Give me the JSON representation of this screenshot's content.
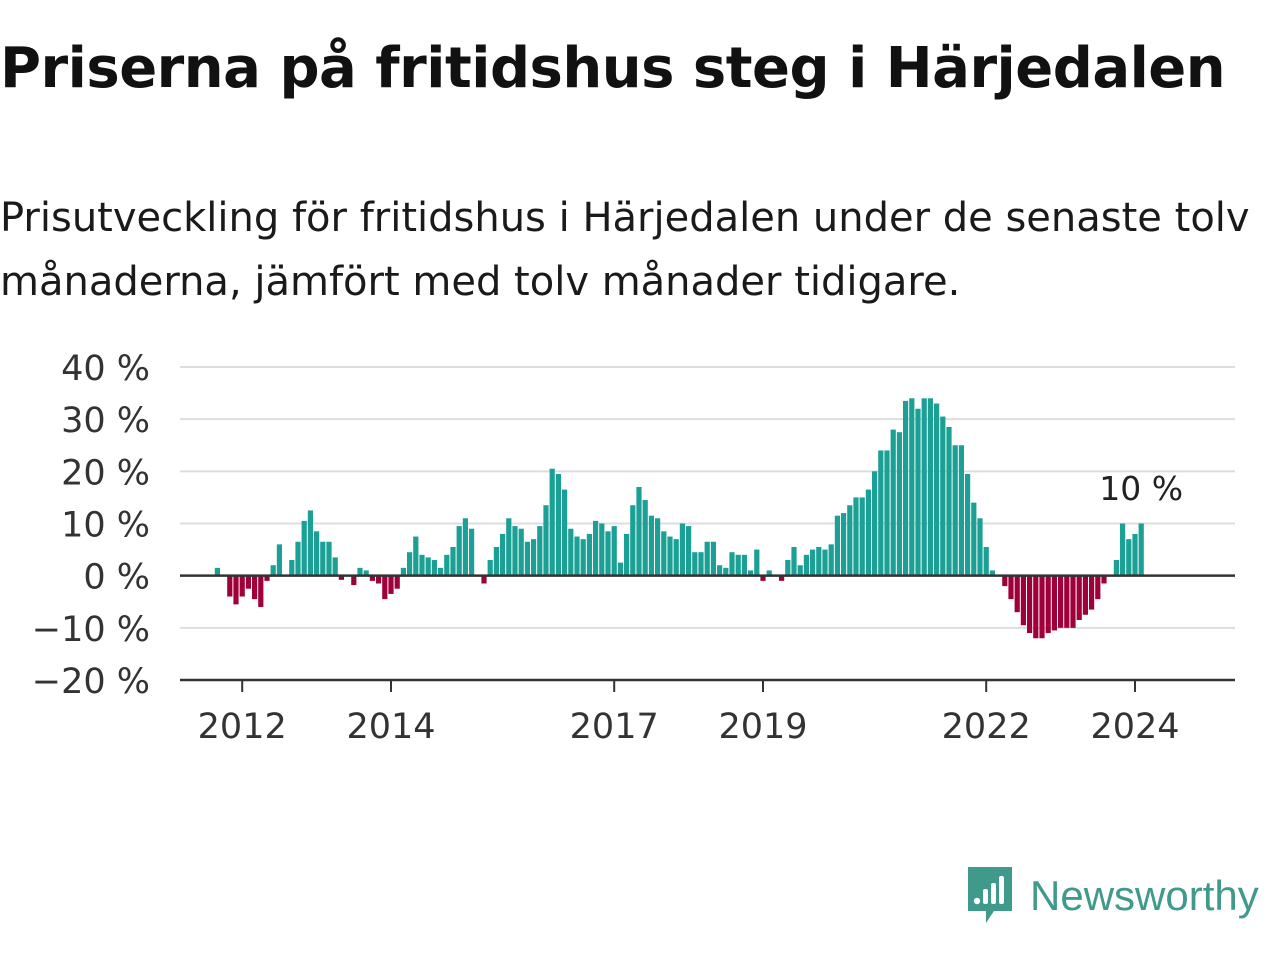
{
  "title": "Priserna på fritidshus steg i Härjedalen",
  "subtitle": "Prisutveckling för fritidshus i Härjedalen under de senaste tolv månaderna, jämfört med tolv månader tidigare.",
  "brand": "Newsworthy",
  "colors": {
    "positive": "#1aa095",
    "negative": "#a0003a",
    "grid": "#dddddd",
    "axis": "#333333"
  },
  "chart_data": {
    "type": "bar",
    "ylim": [
      -20,
      40
    ],
    "yticks": [
      "40 %",
      "30 %",
      "20 %",
      "10 %",
      "0 %",
      "−10 %",
      "−20 %"
    ],
    "xticks": [
      "2012",
      "2014",
      "2017",
      "2019",
      "2022",
      "2024"
    ],
    "annotation": "10 %",
    "x_start": "2011-07",
    "values": [
      0,
      0,
      1.5,
      0,
      -4,
      -5.5,
      -4,
      -2.5,
      -4.5,
      -6,
      -1,
      2,
      6,
      0,
      3,
      6.5,
      10.5,
      12.5,
      8.5,
      6.5,
      6.5,
      3.5,
      -0.8,
      0,
      -1.8,
      1.5,
      1,
      -1,
      -1.5,
      -4.5,
      -3.5,
      -2.5,
      1.5,
      4.5,
      7.5,
      4,
      3.5,
      3,
      1.5,
      4,
      5.5,
      9.5,
      11,
      9,
      0,
      -1.5,
      3,
      5.5,
      8,
      11,
      9.5,
      9,
      6.5,
      7,
      9.5,
      13.5,
      20.5,
      19.5,
      16.5,
      9,
      7.5,
      7,
      8,
      10.5,
      10,
      8.5,
      9.5,
      2.5,
      8,
      13.5,
      17,
      14.5,
      11.5,
      11,
      8.5,
      7.5,
      7,
      10,
      9.5,
      4.5,
      4.5,
      6.5,
      6.5,
      2,
      1.5,
      4.5,
      4,
      4,
      1,
      5,
      -1,
      1,
      0,
      -1,
      3,
      5.5,
      2,
      4,
      5,
      5.5,
      5,
      6,
      11.5,
      12,
      13.5,
      15,
      15,
      16.5,
      20,
      24,
      24,
      28,
      27.5,
      33.5,
      34,
      32,
      34,
      34,
      33,
      30.5,
      28.5,
      25,
      25,
      19.5,
      14,
      11,
      5.5,
      1,
      0,
      -2,
      -4.5,
      -7,
      -9.5,
      -11,
      -12,
      -12,
      -11,
      -10.5,
      -10,
      -10,
      -10,
      -8.5,
      -7.5,
      -6.5,
      -4.5,
      -1.5,
      0,
      3,
      10,
      7,
      8,
      10
    ]
  }
}
